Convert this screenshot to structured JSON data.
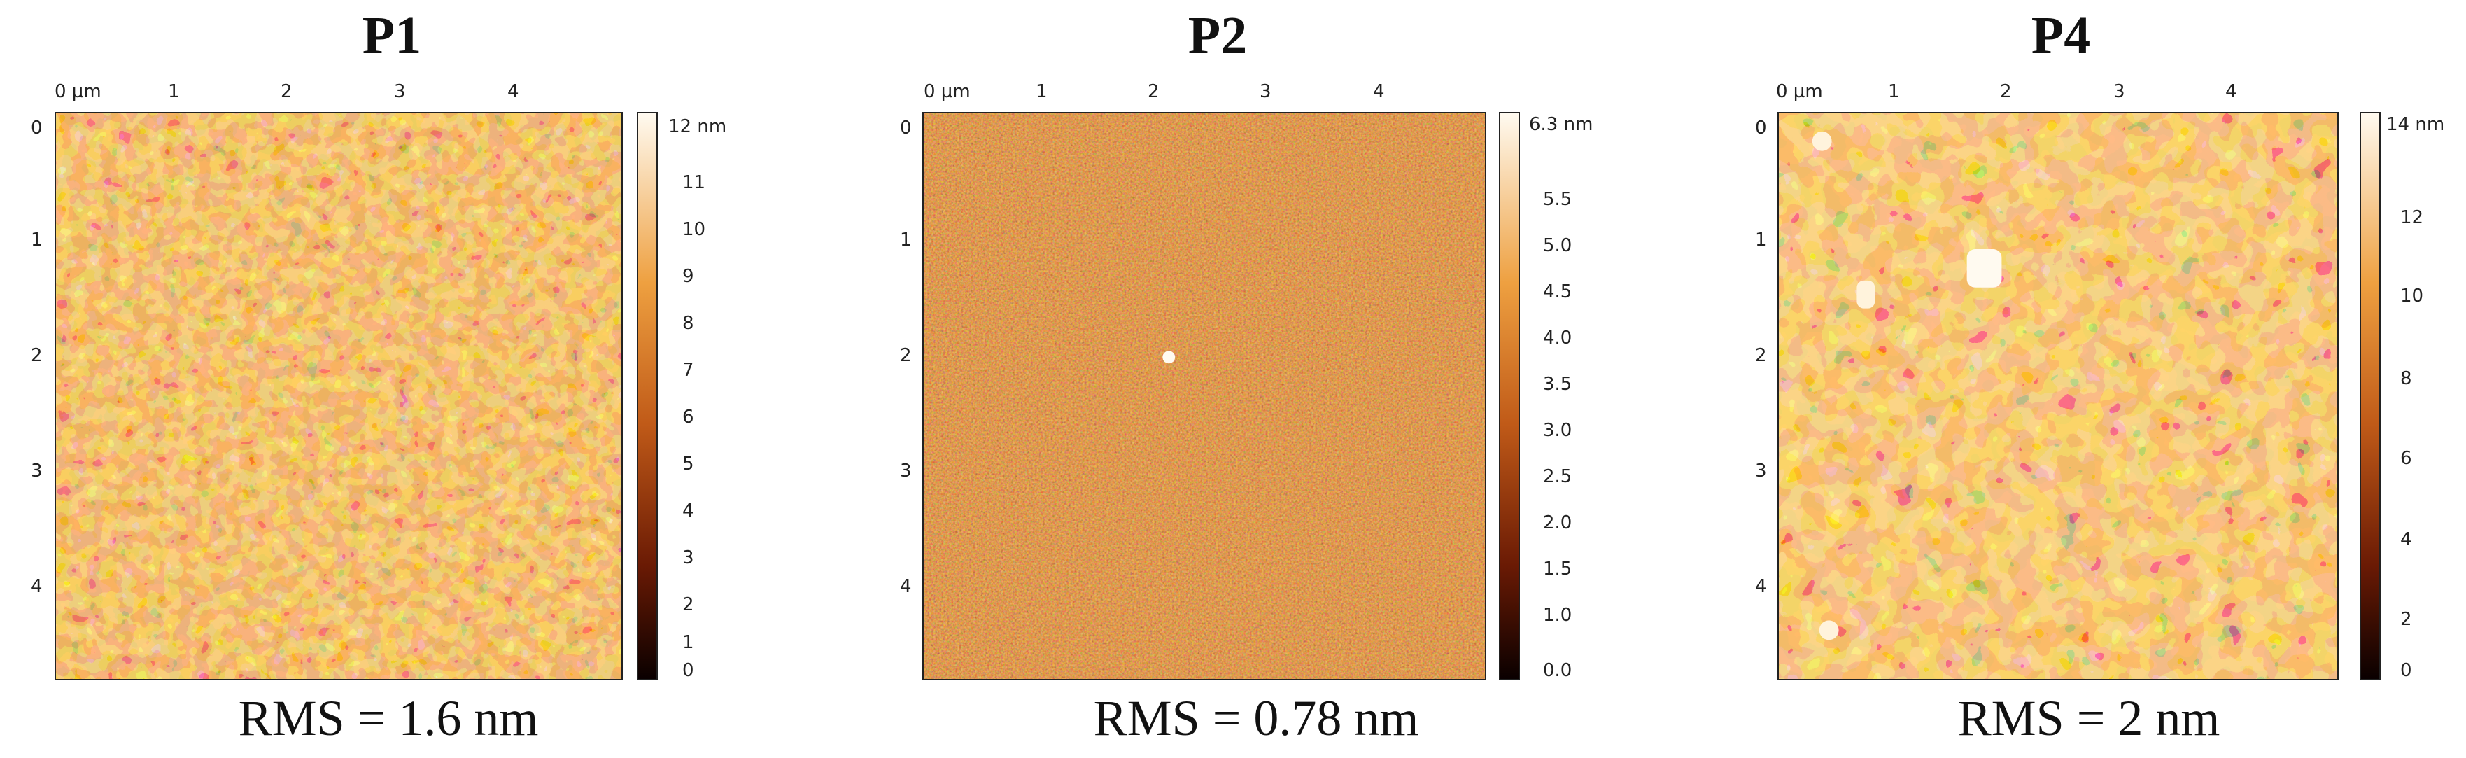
{
  "panels": [
    {
      "title": "P1",
      "rms": "RMS = 1.6 nm",
      "x_ticks": [
        "0 µm",
        "1",
        "2",
        "3",
        "4"
      ],
      "y_ticks": [
        "0",
        "1",
        "2",
        "3",
        "4"
      ],
      "colorbar_labels": [
        "12 nm",
        "11",
        "10",
        "9",
        "8",
        "7",
        "6",
        "5",
        "4",
        "3",
        "2",
        "1",
        "0"
      ],
      "texture": "dense-grains"
    },
    {
      "title": "P2",
      "rms": "RMS = 0.78 nm",
      "x_ticks": [
        "0 µm",
        "1",
        "2",
        "3",
        "4"
      ],
      "y_ticks": [
        "0",
        "1",
        "2",
        "3",
        "4"
      ],
      "colorbar_labels": [
        "6.3 nm",
        "5.5",
        "5.0",
        "4.5",
        "4.0",
        "3.5",
        "3.0",
        "2.5",
        "2.0",
        "1.5",
        "1.0",
        "0.0"
      ],
      "texture": "fine-noise"
    },
    {
      "title": "P4",
      "rms": "RMS = 2 nm",
      "x_ticks": [
        "0 µm",
        "1",
        "2",
        "3",
        "4"
      ],
      "y_ticks": [
        "0",
        "1",
        "2",
        "3",
        "4"
      ],
      "colorbar_labels": [
        "14 nm",
        "12",
        "10",
        "8",
        "6",
        "4",
        "2",
        "0"
      ],
      "texture": "large-grains"
    }
  ],
  "colors": {
    "colormap_top": "#fffaf0",
    "colormap_mid_high": "#f2b04a",
    "colormap_mid": "#d9782a",
    "colormap_mid_low": "#9a3a0c",
    "colormap_bottom": "#0a0000"
  }
}
